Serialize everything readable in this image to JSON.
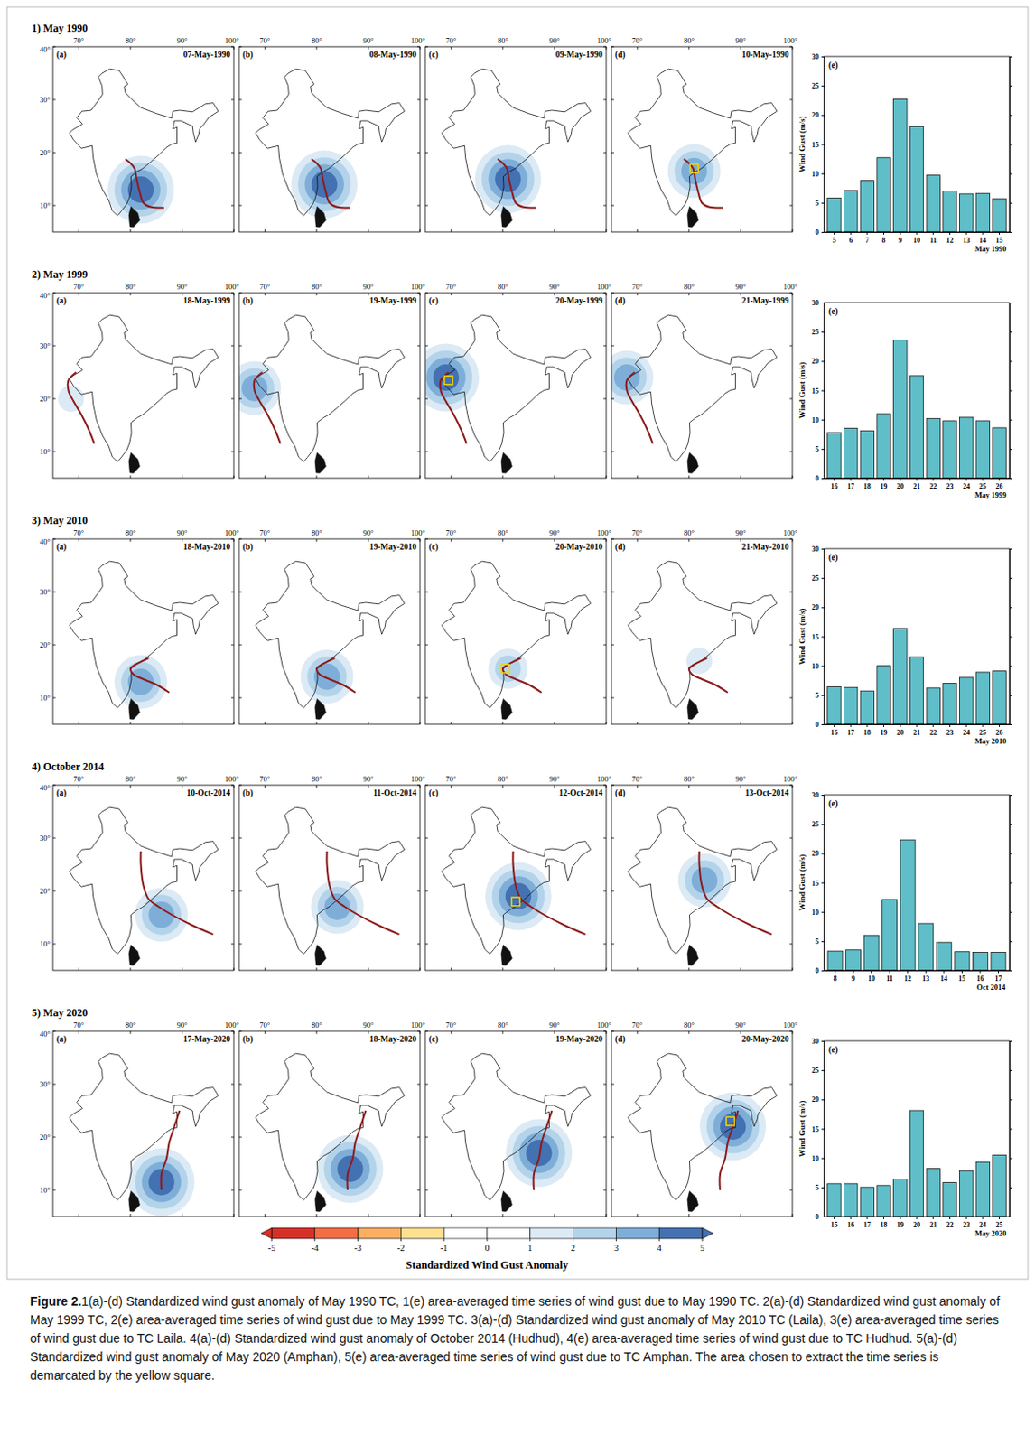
{
  "map_axes": {
    "lon_lim": [
      65,
      100
    ],
    "lat_lim": [
      5,
      40
    ],
    "lon_ticks": [
      {
        "value": 70,
        "label": "70°"
      },
      {
        "value": 80,
        "label": "80°"
      },
      {
        "value": 90,
        "label": "90°"
      },
      {
        "value": 100,
        "label": "100°"
      }
    ],
    "lat_ticks": [
      {
        "value": 10,
        "label": "10°"
      },
      {
        "value": 20,
        "label": "20°"
      },
      {
        "value": 30,
        "label": "30°"
      },
      {
        "value": 40,
        "label": "40°"
      }
    ]
  },
  "map_rows": [
    {
      "title": "1) May 1990",
      "track_lon": [
        86.5,
        84,
        82.5,
        81.8,
        81.2,
        80.8,
        80,
        79
      ],
      "track_lat": [
        9.6,
        9.7,
        10.5,
        12.5,
        15,
        17,
        18,
        18.8
      ],
      "maps": [
        {
          "letter": "(a)",
          "date": "07-May-1990",
          "blob": {
            "lon": 82,
            "lat": 13,
            "peak": 5
          }
        },
        {
          "letter": "(b)",
          "date": "08-May-1990",
          "blob": {
            "lon": 81.5,
            "lat": 14,
            "peak": 5
          }
        },
        {
          "letter": "(c)",
          "date": "09-May-1990",
          "blob": {
            "lon": 81,
            "lat": 15,
            "peak": 5
          }
        },
        {
          "letter": "(d)",
          "date": "10-May-1990",
          "blob": {
            "lon": 81,
            "lat": 16.5,
            "peak": 4
          },
          "box": {
            "lon": 81,
            "lat": 17
          }
        }
      ]
    },
    {
      "title": "2) May 1999",
      "track_lon": [
        73,
        72,
        70.5,
        69,
        68,
        68,
        69.5
      ],
      "track_lat": [
        11.5,
        14,
        17,
        19.5,
        21.5,
        23.5,
        25
      ],
      "maps": [
        {
          "letter": "(a)",
          "date": "18-May-1999",
          "blob": {
            "lon": 68.5,
            "lat": 20,
            "peak": 2
          }
        },
        {
          "letter": "(b)",
          "date": "19-May-1999",
          "blob": {
            "lon": 68,
            "lat": 22,
            "peak": 4
          }
        },
        {
          "letter": "(c)",
          "date": "20-May-1999",
          "blob": {
            "lon": 69,
            "lat": 24,
            "peak": 5
          },
          "box": {
            "lon": 69.5,
            "lat": 23.5
          }
        },
        {
          "letter": "(d)",
          "date": "21-May-1999",
          "blob": {
            "lon": 68,
            "lat": 24,
            "peak": 4
          }
        }
      ]
    },
    {
      "title": "3) May 2010",
      "track_lon": [
        87.5,
        85,
        82.5,
        80.5,
        80,
        80.5,
        82,
        83.5
      ],
      "track_lat": [
        11,
        12.5,
        13.5,
        14.5,
        15.5,
        16,
        16.8,
        17.5
      ],
      "maps": [
        {
          "letter": "(a)",
          "date": "18-May-2010",
          "blob": {
            "lon": 82,
            "lat": 13,
            "peak": 4
          }
        },
        {
          "letter": "(b)",
          "date": "19-May-2010",
          "blob": {
            "lon": 82,
            "lat": 14,
            "peak": 4
          }
        },
        {
          "letter": "(c)",
          "date": "20-May-2010",
          "blob": {
            "lon": 81,
            "lat": 15.5,
            "peak": 3
          },
          "box": {
            "lon": 80.5,
            "lat": 15.5
          }
        },
        {
          "letter": "(d)",
          "date": "21-May-2010",
          "blob": {
            "lon": 82,
            "lat": 17,
            "peak": 2
          }
        }
      ]
    },
    {
      "title": "4) October 2014",
      "track_lon": [
        96,
        92,
        88,
        85.5,
        83.5,
        82.5,
        82,
        82
      ],
      "track_lat": [
        11.8,
        13.5,
        15.5,
        17,
        18.5,
        21,
        25,
        27.5
      ],
      "maps": [
        {
          "letter": "(a)",
          "date": "10-Oct-2014",
          "blob": {
            "lon": 86,
            "lat": 15.5,
            "peak": 4
          }
        },
        {
          "letter": "(b)",
          "date": "11-Oct-2014",
          "blob": {
            "lon": 84,
            "lat": 17,
            "peak": 4
          }
        },
        {
          "letter": "(c)",
          "date": "12-Oct-2014",
          "blob": {
            "lon": 83,
            "lat": 19,
            "peak": 5
          },
          "box": {
            "lon": 82.5,
            "lat": 18
          }
        },
        {
          "letter": "(d)",
          "date": "13-Oct-2014",
          "blob": {
            "lon": 83,
            "lat": 22,
            "peak": 4
          }
        }
      ]
    },
    {
      "title": "5) May 2020",
      "track_lon": [
        86,
        86,
        87,
        87.5,
        88.5,
        89.5
      ],
      "track_lat": [
        10,
        13,
        16,
        19,
        22,
        25
      ],
      "maps": [
        {
          "letter": "(a)",
          "date": "17-May-2020",
          "blob": {
            "lon": 86,
            "lat": 11.5,
            "peak": 5
          }
        },
        {
          "letter": "(b)",
          "date": "18-May-2020",
          "blob": {
            "lon": 86.5,
            "lat": 14,
            "peak": 5
          }
        },
        {
          "letter": "(c)",
          "date": "19-May-2020",
          "blob": {
            "lon": 87,
            "lat": 17,
            "peak": 5
          }
        },
        {
          "letter": "(d)",
          "date": "20-May-2020",
          "blob": {
            "lon": 88.5,
            "lat": 22,
            "peak": 5
          },
          "box": {
            "lon": 88,
            "lat": 23
          }
        }
      ]
    }
  ],
  "chart_data": [
    {
      "type": "bar",
      "panel_label": "(e)",
      "x_label": "May 1990",
      "y_label": "Wind Gust (m/s)",
      "categories": [
        "5",
        "6",
        "7",
        "8",
        "9",
        "10",
        "11",
        "12",
        "13",
        "14",
        "15"
      ],
      "values": [
        5.8,
        7.1,
        8.8,
        12.7,
        22.7,
        18,
        9.7,
        7,
        6.5,
        6.6,
        5.7
      ],
      "color": "#5fbec8",
      "ylim": [
        0,
        30
      ],
      "yticks": [
        0,
        5,
        10,
        15,
        20,
        25,
        30
      ]
    },
    {
      "type": "bar",
      "panel_label": "(e)",
      "x_label": "May 1999",
      "y_label": "Wind Gust (m/s)",
      "categories": [
        "16",
        "17",
        "18",
        "19",
        "20",
        "21",
        "22",
        "23",
        "24",
        "25",
        "26"
      ],
      "values": [
        7.8,
        8.5,
        8.1,
        11,
        23.6,
        17.5,
        10.2,
        9.8,
        10.4,
        9.8,
        8.6
      ],
      "color": "#5fbec8",
      "ylim": [
        0,
        30
      ],
      "yticks": [
        0,
        5,
        10,
        15,
        20,
        25,
        30
      ]
    },
    {
      "type": "bar",
      "panel_label": "(e)",
      "x_label": "May 2010",
      "y_label": "Wind Gust (m/s)",
      "categories": [
        "16",
        "17",
        "18",
        "19",
        "20",
        "21",
        "22",
        "23",
        "24",
        "25",
        "26"
      ],
      "values": [
        6.4,
        6.3,
        5.7,
        10,
        16.4,
        11.5,
        6.2,
        7,
        8,
        8.9,
        9.1
      ],
      "color": "#5fbec8",
      "ylim": [
        0,
        30
      ],
      "yticks": [
        0,
        5,
        10,
        15,
        20,
        25,
        30
      ]
    },
    {
      "type": "bar",
      "panel_label": "(e)",
      "x_label": "Oct 2014",
      "y_label": "Wind Gust (m/s)",
      "categories": [
        "8",
        "9",
        "10",
        "11",
        "12",
        "13",
        "14",
        "15",
        "16",
        "17"
      ],
      "values": [
        3.3,
        3.5,
        6,
        12.1,
        22.3,
        8,
        4.8,
        3.2,
        3.1,
        3.1
      ],
      "color": "#5fbec8",
      "ylim": [
        0,
        30
      ],
      "yticks": [
        0,
        5,
        10,
        15,
        20,
        25,
        30
      ]
    },
    {
      "type": "bar",
      "panel_label": "(e)",
      "x_label": "May 2020",
      "y_label": "Wind Gust (m/s)",
      "categories": [
        "15",
        "16",
        "17",
        "18",
        "19",
        "20",
        "21",
        "22",
        "23",
        "24",
        "25"
      ],
      "values": [
        5.6,
        5.6,
        5,
        5.3,
        6.4,
        18.1,
        8.2,
        5.8,
        7.8,
        9.3,
        10.5
      ],
      "color": "#5fbec8",
      "ylim": [
        0,
        30
      ],
      "yticks": [
        0,
        5,
        10,
        15,
        20,
        25,
        30
      ]
    }
  ],
  "colorbar": {
    "title": "Standardized Wind Gust Anomaly",
    "ticks": [
      -5,
      -4,
      -3,
      -2,
      -1,
      0,
      1,
      2,
      3,
      4,
      5
    ],
    "colors": [
      "#d73027",
      "#f46d43",
      "#fdae61",
      "#fee090",
      "#ffffff",
      "#ffffff",
      "#dbeaf5",
      "#b3d3ea",
      "#7eaed8",
      "#4471b2"
    ]
  },
  "caption": {
    "label": "Figure 2.",
    "text": "1(a)-(d) Standardized wind gust anomaly of May 1990 TC, 1(e) area-averaged time series of wind gust due to May 1990 TC. 2(a)-(d) Standardized wind gust anomaly of May 1999 TC, 2(e) area-averaged time series of wind gust due to May 1999 TC. 3(a)-(d) Standardized wind gust anomaly of May 2010 TC (Laila), 3(e) area-averaged time series of wind gust due to TC Laila. 4(a)-(d) Standardized wind gust anomaly of October 2014 (Hudhud), 4(e) area-averaged time series of wind gust due to TC Hudhud. 5(a)-(d) Standardized wind gust anomaly of May 2020 (Amphan), 5(e) area-averaged time series of wind gust due to TC Amphan. The area chosen to extract the time series is demarcated by the yellow square."
  }
}
